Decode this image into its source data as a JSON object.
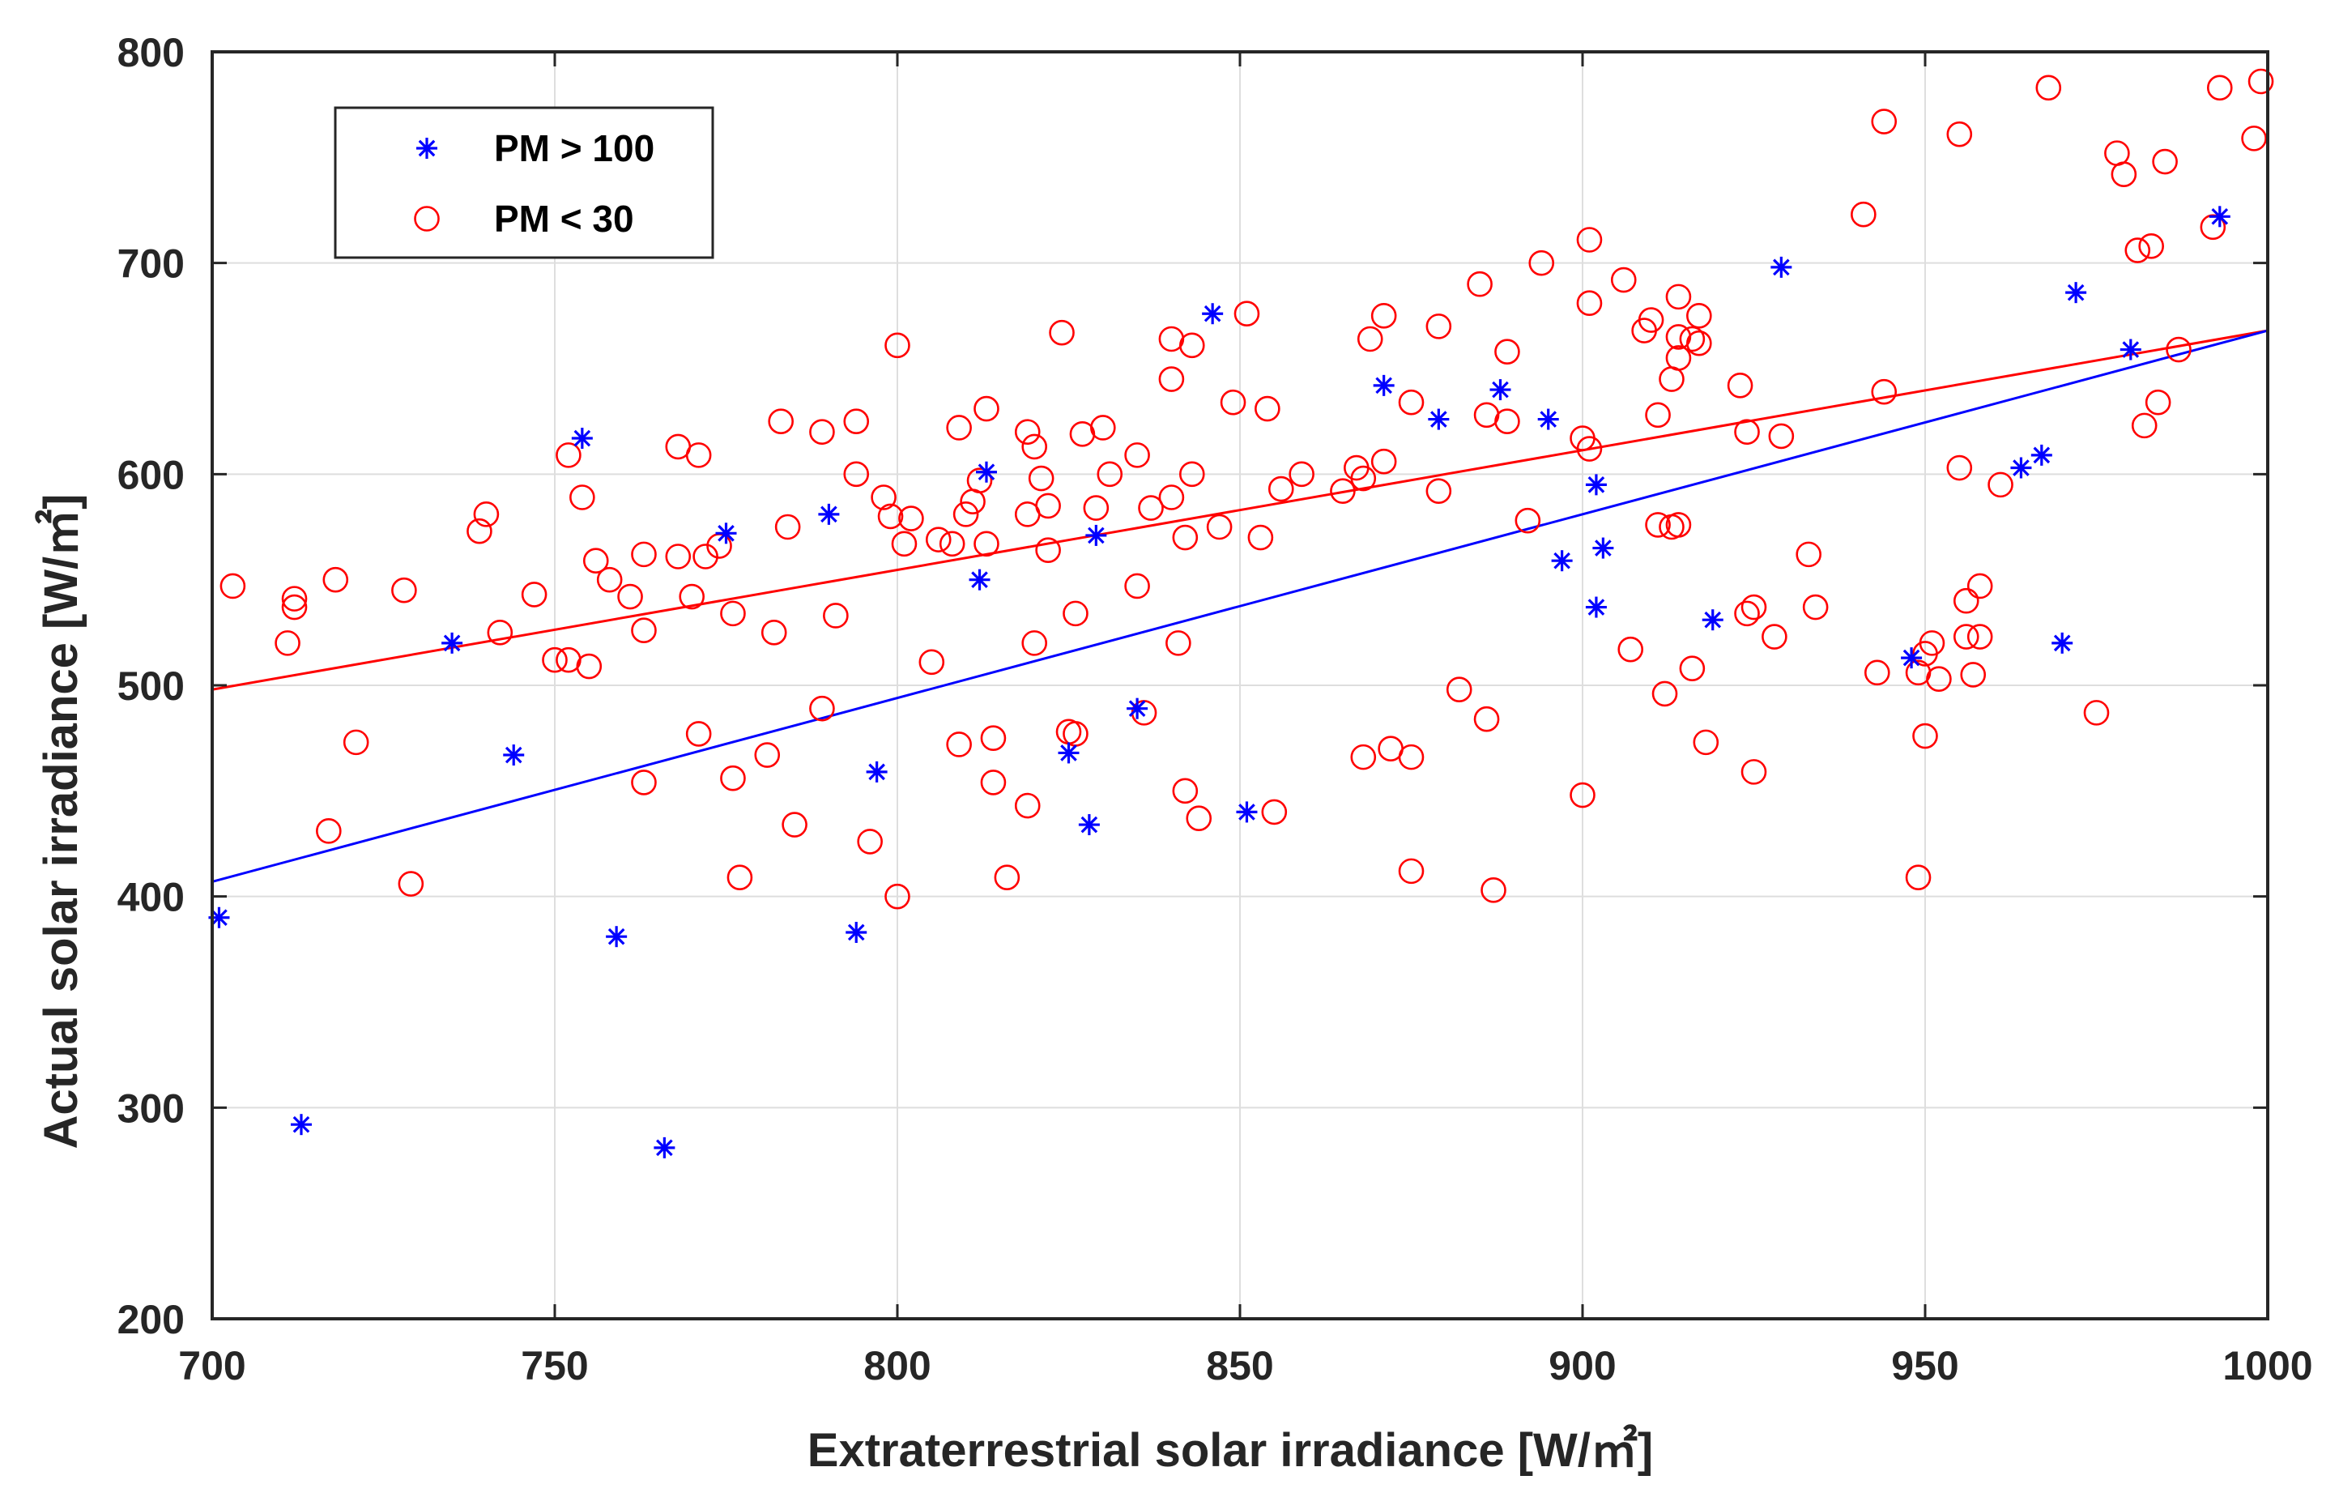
{
  "chart_data": {
    "type": "scatter",
    "xlabel": "Extraterrestrial solar irradiance [W/㎡]",
    "ylabel": "Actual solar irradiance [W/㎡]",
    "xlim": [
      700,
      1000
    ],
    "ylim": [
      200,
      800
    ],
    "xticks": [
      "700",
      "750",
      "800",
      "850",
      "900",
      "950",
      "1000"
    ],
    "yticks": [
      "200",
      "300",
      "400",
      "500",
      "600",
      "700",
      "800"
    ],
    "grid": true,
    "legend_position": "top-left",
    "series": [
      {
        "name": "PM > 100",
        "marker": "asterisk",
        "color": "#0000ff",
        "points": [
          [
            701,
            390
          ],
          [
            713,
            292
          ],
          [
            735,
            520
          ],
          [
            744,
            467
          ],
          [
            754,
            617
          ],
          [
            759,
            381
          ],
          [
            766,
            281
          ],
          [
            775,
            572
          ],
          [
            790,
            581
          ],
          [
            794,
            383
          ],
          [
            797,
            459
          ],
          [
            812,
            550
          ],
          [
            813,
            601
          ],
          [
            825,
            468
          ],
          [
            828,
            434
          ],
          [
            829,
            571
          ],
          [
            835,
            489
          ],
          [
            846,
            676
          ],
          [
            851,
            440
          ],
          [
            871,
            642
          ],
          [
            879,
            626
          ],
          [
            888,
            640
          ],
          [
            895,
            626
          ],
          [
            897,
            559
          ],
          [
            902,
            595
          ],
          [
            902,
            537
          ],
          [
            903,
            565
          ],
          [
            919,
            531
          ],
          [
            929,
            698
          ],
          [
            948,
            513
          ],
          [
            964,
            603
          ],
          [
            967,
            609
          ],
          [
            970,
            520
          ],
          [
            972,
            686
          ],
          [
            980,
            659
          ],
          [
            993,
            722
          ]
        ]
      },
      {
        "name": "PM < 30",
        "marker": "circle",
        "color": "#ff0000",
        "points": [
          [
            703,
            547
          ],
          [
            711,
            520
          ],
          [
            712,
            541
          ],
          [
            712,
            537
          ],
          [
            717,
            431
          ],
          [
            718,
            550
          ],
          [
            721,
            473
          ],
          [
            728,
            545
          ],
          [
            729,
            406
          ],
          [
            739,
            573
          ],
          [
            740,
            581
          ],
          [
            742,
            525
          ],
          [
            747,
            543
          ],
          [
            750,
            512
          ],
          [
            752,
            609
          ],
          [
            752,
            512
          ],
          [
            754,
            589
          ],
          [
            755,
            509
          ],
          [
            756,
            559
          ],
          [
            758,
            550
          ],
          [
            761,
            542
          ],
          [
            763,
            526
          ],
          [
            763,
            562
          ],
          [
            763,
            454
          ],
          [
            768,
            613
          ],
          [
            768,
            561
          ],
          [
            770,
            542
          ],
          [
            771,
            609
          ],
          [
            772,
            561
          ],
          [
            774,
            566
          ],
          [
            771,
            477
          ],
          [
            776,
            534
          ],
          [
            776,
            456
          ],
          [
            777,
            409
          ],
          [
            781,
            467
          ],
          [
            782,
            525
          ],
          [
            783,
            625
          ],
          [
            784,
            575
          ],
          [
            785,
            434
          ],
          [
            789,
            620
          ],
          [
            789,
            489
          ],
          [
            791,
            533
          ],
          [
            794,
            625
          ],
          [
            794,
            600
          ],
          [
            796,
            426
          ],
          [
            798,
            589
          ],
          [
            799,
            580
          ],
          [
            800,
            661
          ],
          [
            800,
            400
          ],
          [
            801,
            567
          ],
          [
            802,
            579
          ],
          [
            805,
            511
          ],
          [
            806,
            569
          ],
          [
            808,
            567
          ],
          [
            809,
            622
          ],
          [
            810,
            581
          ],
          [
            809,
            472
          ],
          [
            811,
            587
          ],
          [
            812,
            597
          ],
          [
            813,
            631
          ],
          [
            813,
            567
          ],
          [
            814,
            454
          ],
          [
            814,
            475
          ],
          [
            816,
            409
          ],
          [
            819,
            443
          ],
          [
            819,
            620
          ],
          [
            819,
            581
          ],
          [
            820,
            613
          ],
          [
            820,
            520
          ],
          [
            821,
            598
          ],
          [
            822,
            564
          ],
          [
            822,
            585
          ],
          [
            824,
            667
          ],
          [
            825,
            478
          ],
          [
            826,
            534
          ],
          [
            826,
            477
          ],
          [
            827,
            619
          ],
          [
            829,
            584
          ],
          [
            830,
            622
          ],
          [
            831,
            600
          ],
          [
            835,
            609
          ],
          [
            835,
            547
          ],
          [
            836,
            487
          ],
          [
            837,
            584
          ],
          [
            840,
            589
          ],
          [
            840,
            664
          ],
          [
            840,
            645
          ],
          [
            841,
            520
          ],
          [
            842,
            450
          ],
          [
            842,
            570
          ],
          [
            843,
            600
          ],
          [
            843,
            661
          ],
          [
            844,
            437
          ],
          [
            847,
            575
          ],
          [
            849,
            634
          ],
          [
            851,
            676
          ],
          [
            853,
            570
          ],
          [
            854,
            631
          ],
          [
            855,
            440
          ],
          [
            856,
            593
          ],
          [
            859,
            600
          ],
          [
            865,
            592
          ],
          [
            867,
            603
          ],
          [
            868,
            598
          ],
          [
            868,
            466
          ],
          [
            869,
            664
          ],
          [
            871,
            606
          ],
          [
            871,
            675
          ],
          [
            872,
            470
          ],
          [
            875,
            466
          ],
          [
            875,
            412
          ],
          [
            875,
            634
          ],
          [
            879,
            592
          ],
          [
            879,
            670
          ],
          [
            882,
            498
          ],
          [
            885,
            690
          ],
          [
            886,
            484
          ],
          [
            886,
            628
          ],
          [
            887,
            403
          ],
          [
            889,
            625
          ],
          [
            889,
            658
          ],
          [
            892,
            578
          ],
          [
            894,
            700
          ],
          [
            900,
            448
          ],
          [
            900,
            617
          ],
          [
            901,
            612
          ],
          [
            901,
            681
          ],
          [
            901,
            711
          ],
          [
            906,
            692
          ],
          [
            907,
            517
          ],
          [
            909,
            668
          ],
          [
            910,
            673
          ],
          [
            911,
            628
          ],
          [
            911,
            576
          ],
          [
            912,
            496
          ],
          [
            913,
            575
          ],
          [
            913,
            645
          ],
          [
            914,
            684
          ],
          [
            914,
            665
          ],
          [
            914,
            576
          ],
          [
            914,
            655
          ],
          [
            916,
            664
          ],
          [
            916,
            508
          ],
          [
            917,
            675
          ],
          [
            917,
            662
          ],
          [
            918,
            473
          ],
          [
            923,
            642
          ],
          [
            924,
            534
          ],
          [
            924,
            620
          ],
          [
            925,
            537
          ],
          [
            925,
            459
          ],
          [
            928,
            523
          ],
          [
            929,
            618
          ],
          [
            933,
            562
          ],
          [
            934,
            537
          ],
          [
            941,
            723
          ],
          [
            943,
            506
          ],
          [
            944,
            639
          ],
          [
            944,
            767
          ],
          [
            949,
            506
          ],
          [
            949,
            409
          ],
          [
            950,
            515
          ],
          [
            950,
            476
          ],
          [
            951,
            520
          ],
          [
            952,
            503
          ],
          [
            955,
            603
          ],
          [
            955,
            761
          ],
          [
            956,
            523
          ],
          [
            956,
            540
          ],
          [
            957,
            505
          ],
          [
            958,
            523
          ],
          [
            958,
            547
          ],
          [
            961,
            595
          ],
          [
            968,
            783
          ],
          [
            975,
            487
          ],
          [
            978,
            752
          ],
          [
            979,
            742
          ],
          [
            981,
            706
          ],
          [
            982,
            623
          ],
          [
            983,
            708
          ],
          [
            984,
            634
          ],
          [
            985,
            748
          ],
          [
            987,
            659
          ],
          [
            992,
            717
          ],
          [
            993,
            783
          ],
          [
            998,
            759
          ],
          [
            999,
            786
          ]
        ]
      },
      {
        "name": "",
        "marker": "line",
        "color": "#ff0000",
        "points": [
          [
            700,
            498
          ],
          [
            1000,
            668
          ]
        ]
      },
      {
        "name": "",
        "marker": "line",
        "color": "#0000ff",
        "points": [
          [
            700,
            407
          ],
          [
            1000,
            668
          ]
        ]
      }
    ]
  }
}
